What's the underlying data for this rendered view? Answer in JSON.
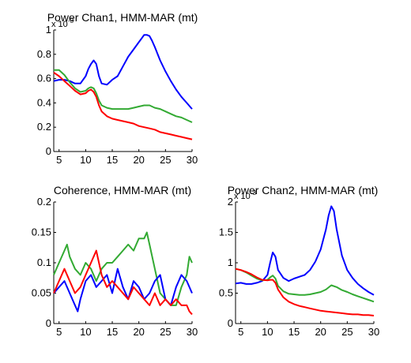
{
  "chart_data": [
    {
      "type": "line",
      "title": "Power Chan1, HMM-MAR (mt)",
      "exponent_label": "x 10",
      "exponent_power": "-3",
      "xlim": [
        4,
        30
      ],
      "ylim": [
        0,
        1
      ],
      "xticks": [
        "5",
        "10",
        "15",
        "20",
        "25",
        "30"
      ],
      "yticks": [
        "0",
        "0.2",
        "0.4",
        "0.6",
        "0.8",
        "1"
      ],
      "xtick_values": [
        5,
        10,
        15,
        20,
        25,
        30
      ],
      "ytick_values": [
        0,
        0.2,
        0.4,
        0.6,
        0.8,
        1
      ],
      "series": [
        {
          "color": "#0000ff",
          "x": [
            4,
            5,
            6,
            7,
            8,
            9,
            10,
            10.5,
            11,
            11.5,
            12,
            12.5,
            13,
            14,
            15,
            16,
            17,
            18,
            19,
            20,
            20.5,
            21,
            21.5,
            22,
            22.5,
            23,
            24,
            25,
            26,
            27,
            28,
            29,
            30
          ],
          "y": [
            0.58,
            0.59,
            0.59,
            0.58,
            0.56,
            0.56,
            0.62,
            0.68,
            0.72,
            0.75,
            0.72,
            0.62,
            0.56,
            0.55,
            0.59,
            0.62,
            0.7,
            0.78,
            0.84,
            0.9,
            0.93,
            0.96,
            0.96,
            0.95,
            0.91,
            0.86,
            0.75,
            0.66,
            0.58,
            0.51,
            0.45,
            0.4,
            0.35
          ]
        },
        {
          "color": "#33aa33",
          "x": [
            4,
            5,
            6,
            7,
            8,
            9,
            10,
            10.5,
            11,
            11.5,
            12,
            12.5,
            13,
            14,
            15,
            16,
            17,
            18,
            19,
            20,
            21,
            22,
            23,
            24,
            25,
            26,
            27,
            28,
            29,
            30
          ],
          "y": [
            0.67,
            0.67,
            0.63,
            0.57,
            0.52,
            0.49,
            0.5,
            0.52,
            0.53,
            0.52,
            0.48,
            0.42,
            0.38,
            0.36,
            0.35,
            0.35,
            0.35,
            0.35,
            0.36,
            0.37,
            0.38,
            0.38,
            0.36,
            0.35,
            0.33,
            0.31,
            0.29,
            0.28,
            0.26,
            0.24
          ]
        },
        {
          "color": "#ff0000",
          "x": [
            4,
            5,
            6,
            7,
            8,
            9,
            10,
            10.5,
            11,
            11.5,
            12,
            12.5,
            13,
            14,
            15,
            16,
            17,
            18,
            19,
            20,
            21,
            22,
            23,
            24,
            25,
            26,
            27,
            28,
            29,
            30
          ],
          "y": [
            0.65,
            0.62,
            0.58,
            0.54,
            0.5,
            0.47,
            0.48,
            0.5,
            0.51,
            0.49,
            0.45,
            0.38,
            0.33,
            0.29,
            0.27,
            0.26,
            0.25,
            0.24,
            0.23,
            0.21,
            0.2,
            0.19,
            0.18,
            0.16,
            0.15,
            0.14,
            0.13,
            0.12,
            0.11,
            0.1
          ]
        }
      ]
    },
    {
      "type": "line",
      "title": "Coherence, HMM-MAR (mt)",
      "exponent_label": "",
      "exponent_power": "",
      "xlim": [
        4,
        30
      ],
      "ylim": [
        0,
        0.2
      ],
      "xticks": [
        "5",
        "10",
        "15",
        "20",
        "25",
        "30"
      ],
      "yticks": [
        "0",
        "0.05",
        "0.1",
        "0.15",
        "0.2"
      ],
      "xtick_values": [
        5,
        10,
        15,
        20,
        25,
        30
      ],
      "ytick_values": [
        0,
        0.05,
        0.1,
        0.15,
        0.2
      ],
      "series": [
        {
          "color": "#33aa33",
          "x": [
            4,
            5,
            6,
            6.5,
            7,
            8,
            9,
            10,
            11,
            12,
            13,
            14,
            15,
            16,
            17,
            18,
            19,
            20,
            21,
            21.5,
            22,
            23,
            24,
            25,
            26,
            27,
            28,
            29,
            29.5,
            30
          ],
          "y": [
            0.08,
            0.1,
            0.12,
            0.13,
            0.11,
            0.09,
            0.08,
            0.1,
            0.09,
            0.07,
            0.09,
            0.1,
            0.1,
            0.11,
            0.12,
            0.13,
            0.12,
            0.14,
            0.14,
            0.15,
            0.13,
            0.09,
            0.05,
            0.04,
            0.03,
            0.03,
            0.06,
            0.08,
            0.11,
            0.1
          ]
        },
        {
          "color": "#0000ff",
          "x": [
            4,
            5,
            6,
            7,
            8,
            8.5,
            9,
            10,
            11,
            12,
            13,
            14,
            15,
            16,
            17,
            18,
            19,
            20,
            21,
            22,
            23,
            24,
            25,
            26,
            27,
            28,
            29,
            30
          ],
          "y": [
            0.05,
            0.06,
            0.07,
            0.05,
            0.03,
            0.02,
            0.04,
            0.07,
            0.08,
            0.06,
            0.07,
            0.08,
            0.05,
            0.09,
            0.06,
            0.04,
            0.07,
            0.06,
            0.04,
            0.05,
            0.07,
            0.08,
            0.04,
            0.03,
            0.06,
            0.08,
            0.07,
            0.05
          ]
        },
        {
          "color": "#ff0000",
          "x": [
            4,
            5,
            6,
            7,
            8,
            9,
            10,
            11,
            12,
            13,
            14,
            15,
            16,
            17,
            18,
            19,
            20,
            21,
            22,
            23,
            24,
            25,
            26,
            27,
            28,
            29,
            29.5,
            30
          ],
          "y": [
            0.05,
            0.07,
            0.09,
            0.07,
            0.05,
            0.06,
            0.08,
            0.1,
            0.12,
            0.08,
            0.06,
            0.07,
            0.06,
            0.05,
            0.04,
            0.06,
            0.05,
            0.04,
            0.03,
            0.05,
            0.03,
            0.04,
            0.03,
            0.04,
            0.03,
            0.03,
            0.02,
            0.015
          ]
        }
      ]
    },
    {
      "type": "line",
      "title": "Power Chan2, HMM-MAR (mt)",
      "exponent_label": "x 10",
      "exponent_power": "-3",
      "xlim": [
        4,
        30
      ],
      "ylim": [
        0,
        2
      ],
      "xticks": [
        "5",
        "10",
        "15",
        "20",
        "25",
        "30"
      ],
      "yticks": [
        "0",
        "0.5",
        "1",
        "1.5",
        "2"
      ],
      "xtick_values": [
        5,
        10,
        15,
        20,
        25,
        30
      ],
      "ytick_values": [
        0,
        0.5,
        1,
        1.5,
        2
      ],
      "series": [
        {
          "color": "#0000ff",
          "x": [
            4,
            5,
            6,
            7,
            8,
            9,
            10,
            10.5,
            11,
            11.5,
            12,
            13,
            14,
            15,
            16,
            17,
            18,
            19,
            20,
            21,
            21.5,
            22,
            22.5,
            23,
            24,
            25,
            26,
            27,
            28,
            29,
            30
          ],
          "y": [
            0.66,
            0.67,
            0.65,
            0.65,
            0.67,
            0.7,
            0.8,
            1.0,
            1.17,
            1.1,
            0.88,
            0.75,
            0.7,
            0.74,
            0.77,
            0.8,
            0.88,
            1.02,
            1.22,
            1.55,
            1.78,
            1.93,
            1.85,
            1.55,
            1.12,
            0.88,
            0.75,
            0.65,
            0.58,
            0.52,
            0.47
          ]
        },
        {
          "color": "#33aa33",
          "x": [
            4,
            5,
            6,
            7,
            8,
            9,
            10,
            10.5,
            11,
            11.5,
            12,
            13,
            14,
            15,
            16,
            17,
            18,
            19,
            20,
            21,
            22,
            23,
            24,
            25,
            26,
            27,
            28,
            29,
            30
          ],
          "y": [
            0.9,
            0.88,
            0.84,
            0.79,
            0.74,
            0.71,
            0.72,
            0.76,
            0.79,
            0.74,
            0.62,
            0.53,
            0.49,
            0.48,
            0.47,
            0.47,
            0.48,
            0.5,
            0.52,
            0.56,
            0.63,
            0.6,
            0.55,
            0.52,
            0.48,
            0.45,
            0.42,
            0.39,
            0.36
          ]
        },
        {
          "color": "#ff0000",
          "x": [
            4,
            5,
            6,
            7,
            8,
            9,
            10,
            10.5,
            11,
            11.5,
            12,
            13,
            14,
            15,
            16,
            17,
            18,
            19,
            20,
            21,
            22,
            23,
            24,
            25,
            26,
            27,
            28,
            29,
            30
          ],
          "y": [
            0.9,
            0.88,
            0.85,
            0.81,
            0.76,
            0.72,
            0.71,
            0.72,
            0.72,
            0.67,
            0.56,
            0.43,
            0.36,
            0.32,
            0.29,
            0.27,
            0.25,
            0.23,
            0.21,
            0.2,
            0.19,
            0.18,
            0.17,
            0.16,
            0.15,
            0.15,
            0.14,
            0.14,
            0.13
          ]
        }
      ]
    }
  ]
}
